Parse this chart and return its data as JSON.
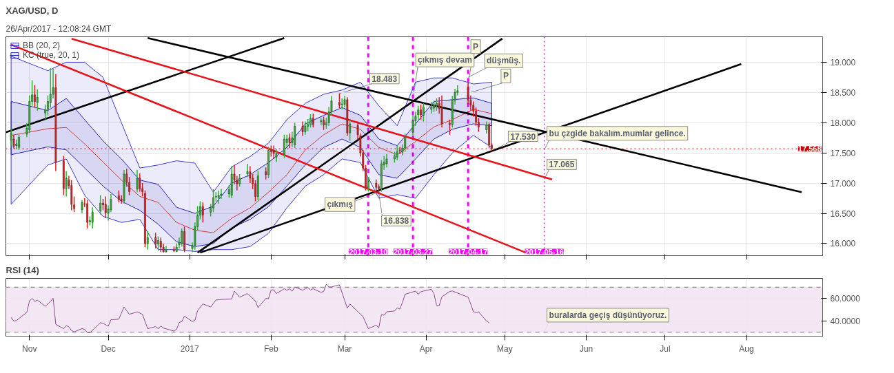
{
  "chart_data": [
    {
      "type": "candlestick",
      "title": "XAG/USD, D",
      "annotations": [
        "26/Apr/2017 - 12:08:24 GMT",
        {
          "text": "18.483",
          "x": "2017-02-27",
          "y": 18.483
        },
        {
          "text": "çıkmış devam",
          "x": "2017-03-27",
          "y": 18.4
        },
        {
          "text": "düşmüş.",
          "x": "2017-04-17",
          "y": 18.75
        },
        {
          "text": "P",
          "x": "2017-04-17",
          "y": 18.62
        },
        {
          "text": "P",
          "x": "2017-04-18",
          "y": 18.5
        },
        {
          "text": "17.530",
          "x": "2017-04-26",
          "y": 17.53
        },
        {
          "text": "bu çzgide bakalım.mumlar gelince.",
          "x": "2017-05-16",
          "y": 17.55
        },
        {
          "text": "17.065",
          "x": "2017-05-16",
          "y": 17.065
        },
        {
          "text": "çıkmış",
          "x": "2017-03-14",
          "y": 16.85
        },
        {
          "text": "16.838",
          "x": "2017-03-14",
          "y": 16.838
        }
      ],
      "colors": [
        "#2cb52c",
        "#e01b1b",
        "#2cb52c",
        "#2cb52c",
        "#2cb52c",
        "#2cb52c",
        "#2cb52c",
        "#e01b1b",
        "#2cb52c",
        "#2cb52c",
        "#2cb52c",
        "#2cb52c",
        "#2cb52c",
        "#e01b1b",
        "#e01b1b",
        "#2cb52c",
        "#e01b1b",
        "#e01b1b",
        "#e01b1b",
        "#2cb52c",
        "#e01b1b",
        "#e01b1b",
        "#2cb52c",
        "#2cb52c",
        "#2cb52c",
        "#e01b1b",
        "#e01b1b",
        "#2cb52c",
        "#2cb52c",
        "#e01b1b",
        "#e01b1b",
        "#2cb52c",
        "#e01b1b",
        "#e01b1b",
        "#2cb52c",
        "#e01b1b",
        "#e01b1b",
        "#e01b1b",
        "#2cb52c",
        "#e01b1b",
        "#2cb52c",
        "#e01b1b",
        "#e01b1b",
        "#2cb52c",
        "#e01b1b",
        "#2cb52c",
        "#2cb52c",
        "#2cb52c",
        "#e01b1b",
        "#2cb52c",
        "#2cb52c",
        "#2cb52c",
        "#2cb52c",
        "#e01b1b",
        "#2cb52c",
        "#2cb52c",
        "#2cb52c",
        "#2cb52c",
        "#2cb52c",
        "#2cb52c",
        "#2cb52c",
        "#e01b1b",
        "#e01b1b",
        "#2cb52c",
        "#2cb52c",
        "#e01b1b",
        "#e01b1b",
        "#e01b1b",
        "#2cb52c",
        "#e01b1b",
        "#2cb52c",
        "#e01b1b",
        "#e01b1b",
        "#2cb52c",
        "#2cb52c",
        "#2cb52c",
        "#e01b1b",
        "#2cb52c",
        "#2cb52c",
        "#e01b1b",
        "#2cb52c",
        "#2cb52c",
        "#2cb52c",
        "#e01b1b",
        "#2cb52c",
        "#e01b1b",
        "#2cb52c",
        "#2cb52c",
        "#2cb52c",
        "#e01b1b",
        "#2cb52c",
        "#2cb52c",
        "#e01b1b",
        "#2cb52c",
        "#e01b1b",
        "#e01b1b",
        "#e01b1b",
        "#e01b1b",
        "#2cb52c",
        "#e01b1b",
        "#e01b1b",
        "#2cb52c",
        "#2cb52c",
        "#2cb52c",
        "#2cb52c",
        "#2cb52c",
        "#e01b1b",
        "#2cb52c",
        "#2cb52c",
        "#2cb52c",
        "#2cb52c",
        "#2cb52c",
        "#e01b1b",
        "#2cb52c",
        "#2cb52c",
        "#2cb52c",
        "#2cb52c",
        "#e01b1b",
        "#e01b1b",
        "#e01b1b",
        "#2cb52c",
        "#2cb52c",
        "#2cb52c",
        "#e01b1b",
        "#e01b1b",
        "#e01b1b",
        "#e01b1b",
        "#e01b1b",
        "#2cb52c",
        "#e01b1b",
        "#e01b1b"
      ],
      "x": [
        "2016-10-25",
        "2016-10-26",
        "2016-10-27",
        "2016-10-28",
        "2016-10-31",
        "2016-11-01",
        "2016-11-02",
        "2016-11-03",
        "2016-11-04",
        "2016-11-07",
        "2016-11-08",
        "2016-11-09",
        "2016-11-10",
        "2016-11-11",
        "2016-11-14",
        "2016-11-15",
        "2016-11-16",
        "2016-11-17",
        "2016-11-18",
        "2016-11-21",
        "2016-11-22",
        "2016-11-23",
        "2016-11-24",
        "2016-11-25",
        "2016-11-28",
        "2016-11-29",
        "2016-11-30",
        "2016-12-01",
        "2016-12-02",
        "2016-12-05",
        "2016-12-06",
        "2016-12-07",
        "2016-12-08",
        "2016-12-09",
        "2016-12-12",
        "2016-12-13",
        "2016-12-14",
        "2016-12-15",
        "2016-12-16",
        "2016-12-19",
        "2016-12-20",
        "2016-12-21",
        "2016-12-22",
        "2016-12-23",
        "2016-12-26",
        "2016-12-27",
        "2016-12-28",
        "2016-12-29",
        "2016-12-30",
        "2017-01-02",
        "2017-01-03",
        "2017-01-04",
        "2017-01-05",
        "2017-01-06",
        "2017-01-09",
        "2017-01-10",
        "2017-01-11",
        "2017-01-12",
        "2017-01-13",
        "2017-01-16",
        "2017-01-17",
        "2017-01-18",
        "2017-01-19",
        "2017-01-20",
        "2017-01-23",
        "2017-01-24",
        "2017-01-25",
        "2017-01-26",
        "2017-01-27",
        "2017-01-30",
        "2017-01-31",
        "2017-02-01",
        "2017-02-02",
        "2017-02-03",
        "2017-02-06",
        "2017-02-07",
        "2017-02-08",
        "2017-02-09",
        "2017-02-10",
        "2017-02-13",
        "2017-02-14",
        "2017-02-15",
        "2017-02-16",
        "2017-02-17",
        "2017-02-20",
        "2017-02-21",
        "2017-02-22",
        "2017-02-23",
        "2017-02-24",
        "2017-02-27",
        "2017-02-28",
        "2017-03-01",
        "2017-03-02",
        "2017-03-03",
        "2017-03-06",
        "2017-03-07",
        "2017-03-08",
        "2017-03-09",
        "2017-03-10",
        "2017-03-13",
        "2017-03-14",
        "2017-03-15",
        "2017-03-16",
        "2017-03-17",
        "2017-03-20",
        "2017-03-21",
        "2017-03-22",
        "2017-03-23",
        "2017-03-24",
        "2017-03-27",
        "2017-03-28",
        "2017-03-29",
        "2017-03-30",
        "2017-03-31",
        "2017-04-03",
        "2017-04-04",
        "2017-04-05",
        "2017-04-06",
        "2017-04-07",
        "2017-04-10",
        "2017-04-11",
        "2017-04-12",
        "2017-04-13",
        "2017-04-17",
        "2017-04-18",
        "2017-04-19",
        "2017-04-20",
        "2017-04-21",
        "2017-04-24",
        "2017-04-25",
        "2017-04-26"
      ],
      "ohlc": [
        [
          17.71,
          17.9,
          17.62,
          17.83
        ],
        [
          17.73,
          17.8,
          17.57,
          17.61
        ],
        [
          17.62,
          17.72,
          17.56,
          17.65
        ],
        [
          17.59,
          17.82,
          17.55,
          17.76
        ],
        [
          17.81,
          17.99,
          17.76,
          17.91
        ],
        [
          17.88,
          18.45,
          17.83,
          18.35
        ],
        [
          18.35,
          18.7,
          18.28,
          18.46
        ],
        [
          18.46,
          18.62,
          18.25,
          18.35
        ],
        [
          18.33,
          18.55,
          18.2,
          18.42
        ],
        [
          18.16,
          18.3,
          18.05,
          18.21
        ],
        [
          18.22,
          18.45,
          18.12,
          18.35
        ],
        [
          18.33,
          18.9,
          18.25,
          18.47
        ],
        [
          18.47,
          18.9,
          18.4,
          18.58
        ],
        [
          18.58,
          18.8,
          17.2,
          17.34
        ],
        [
          17.37,
          17.45,
          16.8,
          16.91
        ],
        [
          16.91,
          17.2,
          16.78,
          17.08
        ],
        [
          17.05,
          17.12,
          16.9,
          16.96
        ],
        [
          16.96,
          17.05,
          16.55,
          16.65
        ],
        [
          16.64,
          16.78,
          16.52,
          16.58
        ],
        [
          16.56,
          16.72,
          16.5,
          16.68
        ],
        [
          16.66,
          16.75,
          16.6,
          16.65
        ],
        [
          16.66,
          16.72,
          16.25,
          16.35
        ],
        [
          16.36,
          16.45,
          16.3,
          16.38
        ],
        [
          16.35,
          16.6,
          16.25,
          16.52
        ],
        [
          16.54,
          16.8,
          16.48,
          16.67
        ],
        [
          16.67,
          16.74,
          16.55,
          16.64
        ],
        [
          16.65,
          16.78,
          16.42,
          16.51
        ],
        [
          16.5,
          16.63,
          16.38,
          16.57
        ],
        [
          16.56,
          16.82,
          16.52,
          16.73
        ],
        [
          16.79,
          16.88,
          16.68,
          16.73
        ],
        [
          16.74,
          16.8,
          16.66,
          16.71
        ],
        [
          16.71,
          17.22,
          16.66,
          17.15
        ],
        [
          17.15,
          17.24,
          16.94,
          17.01
        ],
        [
          17.01,
          17.1,
          16.8,
          16.86
        ],
        [
          16.9,
          17.22,
          16.85,
          17.08
        ],
        [
          17.08,
          17.16,
          16.86,
          16.91
        ],
        [
          16.91,
          17.0,
          16.78,
          16.86
        ],
        [
          16.83,
          16.88,
          15.94,
          16.0
        ],
        [
          16.0,
          16.2,
          15.9,
          16.1
        ],
        [
          16.1,
          16.18,
          15.92,
          15.99
        ],
        [
          15.99,
          16.12,
          15.88,
          16.05
        ],
        [
          16.04,
          16.1,
          15.86,
          15.94
        ],
        [
          15.94,
          16.0,
          15.86,
          15.86
        ],
        [
          15.86,
          15.96,
          15.86,
          15.9
        ],
        [
          15.9,
          15.95,
          15.86,
          15.88
        ],
        [
          15.87,
          16.0,
          15.86,
          15.94
        ],
        [
          15.98,
          16.1,
          15.92,
          16.02
        ],
        [
          16.01,
          16.25,
          15.95,
          16.2
        ],
        [
          16.2,
          16.28,
          15.86,
          15.9
        ],
        [
          15.92,
          16.02,
          15.86,
          15.97
        ],
        [
          15.97,
          16.35,
          15.9,
          16.28
        ],
        [
          16.28,
          16.62,
          16.22,
          16.47
        ],
        [
          16.47,
          16.7,
          16.4,
          16.61
        ],
        [
          16.61,
          16.68,
          16.35,
          16.47
        ],
        [
          16.52,
          16.66,
          16.45,
          16.6
        ],
        [
          16.59,
          16.9,
          16.52,
          16.76
        ],
        [
          16.77,
          16.85,
          16.7,
          16.78
        ],
        [
          16.76,
          16.88,
          16.66,
          16.8
        ],
        [
          16.79,
          16.9,
          16.74,
          16.82
        ],
        [
          16.82,
          16.96,
          16.76,
          16.89
        ],
        [
          16.8,
          17.28,
          16.75,
          17.15
        ],
        [
          17.15,
          17.3,
          16.98,
          17.05
        ],
        [
          17.05,
          17.12,
          16.88,
          16.99
        ],
        [
          16.99,
          17.15,
          16.94,
          17.08
        ],
        [
          17.15,
          17.32,
          17.1,
          17.19
        ],
        [
          17.19,
          17.28,
          17.0,
          17.08
        ],
        [
          17.08,
          17.15,
          16.9,
          16.99
        ],
        [
          16.99,
          17.05,
          16.7,
          16.78
        ],
        [
          16.78,
          17.2,
          16.72,
          17.12
        ],
        [
          17.19,
          17.26,
          17.06,
          17.14
        ],
        [
          17.14,
          17.6,
          17.08,
          17.54
        ],
        [
          17.54,
          17.62,
          17.44,
          17.52
        ],
        [
          17.54,
          17.62,
          17.4,
          17.49
        ],
        [
          17.43,
          17.56,
          17.35,
          17.49
        ],
        [
          17.48,
          17.8,
          17.42,
          17.73
        ],
        [
          17.67,
          17.8,
          17.6,
          17.73
        ],
        [
          17.75,
          17.82,
          17.58,
          17.67
        ],
        [
          17.67,
          17.85,
          17.6,
          17.75
        ],
        [
          17.63,
          18.0,
          17.58,
          17.94
        ],
        [
          17.94,
          18.02,
          17.78,
          17.85
        ],
        [
          17.85,
          18.02,
          17.8,
          17.94
        ],
        [
          17.94,
          18.06,
          17.86,
          17.97
        ],
        [
          17.97,
          18.14,
          17.92,
          18.07
        ],
        [
          18.07,
          18.15,
          17.92,
          17.97
        ],
        [
          18.02,
          18.08,
          17.96,
          18.03
        ],
        [
          18.04,
          18.1,
          17.88,
          17.96
        ],
        [
          17.96,
          18.08,
          17.9,
          18.0
        ],
        [
          18.0,
          18.26,
          17.95,
          18.18
        ],
        [
          18.18,
          18.44,
          18.12,
          18.36
        ],
        [
          18.34,
          18.483,
          18.24,
          18.29
        ],
        [
          18.3,
          18.4,
          18.22,
          18.31
        ],
        [
          18.3,
          18.44,
          18.25,
          18.38
        ],
        [
          18.38,
          18.42,
          17.78,
          17.83
        ],
        [
          17.83,
          18.05,
          17.7,
          17.98
        ],
        [
          17.95,
          18.02,
          17.72,
          17.8
        ],
        [
          17.78,
          17.82,
          17.44,
          17.5
        ],
        [
          17.5,
          17.55,
          17.2,
          17.25
        ],
        [
          17.25,
          17.3,
          16.88,
          16.93
        ],
        [
          16.93,
          17.1,
          16.86,
          17.03
        ],
        [
          17.0,
          17.06,
          16.88,
          16.93
        ],
        [
          16.94,
          16.98,
          16.838,
          16.91
        ],
        [
          16.91,
          17.38,
          16.86,
          17.32
        ],
        [
          17.3,
          17.45,
          17.22,
          17.35
        ],
        [
          17.32,
          17.48,
          17.26,
          17.4
        ],
        [
          17.4,
          17.52,
          17.34,
          17.45
        ],
        [
          17.43,
          17.62,
          17.38,
          17.52
        ],
        [
          17.55,
          17.6,
          17.48,
          17.54
        ],
        [
          17.51,
          17.64,
          17.46,
          17.58
        ],
        [
          17.58,
          17.82,
          17.52,
          17.76
        ],
        [
          17.84,
          18.12,
          17.78,
          18.03
        ],
        [
          18.03,
          18.18,
          17.95,
          18.11
        ],
        [
          18.13,
          18.28,
          18.05,
          18.21
        ],
        [
          18.21,
          18.3,
          18.05,
          18.13
        ],
        [
          18.12,
          18.32,
          18.02,
          18.26
        ],
        [
          18.22,
          18.34,
          18.15,
          18.26
        ],
        [
          18.24,
          18.36,
          18.18,
          18.29
        ],
        [
          18.28,
          18.4,
          18.2,
          18.32
        ],
        [
          18.32,
          18.42,
          18.15,
          18.23
        ],
        [
          18.23,
          18.45,
          17.92,
          17.98
        ],
        [
          17.99,
          18.05,
          17.8,
          17.97
        ],
        [
          17.97,
          18.44,
          17.92,
          18.37
        ],
        [
          18.37,
          18.56,
          18.3,
          18.5
        ],
        [
          18.5,
          18.62,
          18.45,
          18.53
        ],
        [
          18.58,
          18.66,
          18.3,
          18.37
        ],
        [
          18.37,
          18.45,
          18.2,
          18.29
        ],
        [
          18.29,
          18.35,
          18.1,
          18.19
        ],
        [
          18.19,
          18.25,
          17.95,
          18.01
        ],
        [
          18.01,
          18.08,
          17.85,
          17.93
        ],
        [
          17.88,
          18.02,
          17.82,
          17.96
        ],
        [
          17.97,
          18.0,
          17.58,
          17.63
        ],
        [
          17.63,
          17.66,
          17.53,
          17.57
        ]
      ],
      "series": [
        {
          "name": "BB (20, 2)",
          "type": "line",
          "color": "#3a3ad6",
          "x": [
            "2016-10-25",
            "2016-11-08",
            "2016-11-15",
            "2016-11-22",
            "2016-11-29",
            "2016-12-06",
            "2016-12-13",
            "2016-12-20",
            "2016-12-27",
            "2017-01-03",
            "2017-01-10",
            "2017-01-17",
            "2017-01-24",
            "2017-01-31",
            "2017-02-07",
            "2017-02-14",
            "2017-02-21",
            "2017-02-28",
            "2017-03-07",
            "2017-03-14",
            "2017-03-21",
            "2017-03-28",
            "2017-04-04",
            "2017-04-11",
            "2017-04-19",
            "2017-04-26"
          ],
          "values": [
            null,
            null,
            null,
            null,
            null,
            null,
            null,
            null,
            null,
            null,
            null,
            null,
            null,
            null,
            null,
            null,
            null,
            null,
            null,
            null,
            null,
            null,
            null,
            null,
            null,
            null
          ],
          "lower": [
            16.65,
            17.3,
            17.4,
            16.8,
            16.45,
            16.35,
            16.4,
            15.9,
            15.9,
            15.87,
            15.9,
            15.9,
            15.95,
            16.17,
            16.59,
            16.95,
            17.14,
            17.4,
            17.34,
            16.75,
            16.81,
            16.75,
            17.14,
            17.5,
            17.79,
            17.59
          ],
          "upper": [
            19.1,
            18.86,
            19.0,
            19.0,
            18.75,
            18.0,
            17.25,
            17.3,
            17.37,
            17.33,
            16.85,
            17.27,
            17.44,
            17.66,
            18.05,
            18.32,
            18.47,
            18.54,
            18.67,
            18.28,
            17.95,
            18.67,
            18.74,
            18.74,
            18.64,
            18.67
          ]
        },
        {
          "name": "KC (true, 20, 1)",
          "type": "line",
          "color": "#2424b8",
          "x": [
            "2016-10-25",
            "2016-11-08",
            "2016-11-15",
            "2016-11-22",
            "2016-11-29",
            "2016-12-06",
            "2016-12-13",
            "2016-12-20",
            "2016-12-27",
            "2017-01-03",
            "2017-01-10",
            "2017-01-17",
            "2017-01-24",
            "2017-01-31",
            "2017-02-07",
            "2017-02-14",
            "2017-02-21",
            "2017-02-28",
            "2017-03-07",
            "2017-03-14",
            "2017-03-21",
            "2017-03-28",
            "2017-04-04",
            "2017-04-11",
            "2017-04-19",
            "2017-04-26"
          ],
          "values": [
            null,
            null,
            null,
            null,
            null,
            null,
            null,
            null,
            null,
            null,
            null,
            null,
            null,
            null,
            null,
            null,
            null,
            null,
            null,
            null,
            null,
            null,
            null,
            null,
            null,
            null
          ],
          "lower": [
            17.47,
            17.6,
            17.55,
            17.25,
            16.95,
            16.7,
            16.55,
            16.32,
            16.03,
            15.95,
            16.0,
            16.26,
            16.4,
            16.61,
            16.95,
            17.3,
            17.59,
            17.73,
            17.59,
            17.14,
            17.08,
            17.4,
            17.73,
            17.89,
            17.98,
            17.95
          ],
          "upper": [
            18.35,
            18.2,
            18.4,
            18.05,
            17.7,
            17.4,
            17.05,
            16.98,
            16.6,
            16.5,
            16.62,
            17.0,
            17.14,
            17.34,
            17.59,
            17.98,
            18.12,
            18.25,
            18.12,
            17.73,
            17.62,
            17.98,
            18.35,
            18.38,
            18.41,
            18.32
          ]
        },
        {
          "type": "line",
          "color": "#d23a3a",
          "x": [
            "2016-10-25",
            "2016-11-08",
            "2016-11-15",
            "2016-11-22",
            "2016-11-29",
            "2016-12-06",
            "2016-12-13",
            "2016-12-20",
            "2016-12-27",
            "2017-01-03",
            "2017-01-10",
            "2017-01-17",
            "2017-01-24",
            "2017-01-31",
            "2017-02-07",
            "2017-02-14",
            "2017-02-21",
            "2017-02-28",
            "2017-03-07",
            "2017-03-14",
            "2017-03-21",
            "2017-03-28",
            "2017-04-04",
            "2017-04-11",
            "2017-04-19",
            "2017-04-26"
          ],
          "values": [
            17.79,
            17.9,
            17.92,
            17.65,
            17.35,
            17.05,
            16.78,
            16.68,
            16.35,
            16.22,
            16.18,
            16.42,
            16.59,
            16.85,
            17.14,
            17.55,
            17.8,
            17.98,
            17.89,
            17.59,
            17.47,
            17.69,
            17.93,
            18.05,
            18.22,
            18.15
          ]
        },
        {
          "type": "line",
          "color": "#000000",
          "x": [
            "2016-10-23",
            "2017-02-06"
          ],
          "values": [
            17.84,
            19.4
          ]
        },
        {
          "type": "line",
          "color": "#000000",
          "x": [
            "2016-12-16",
            "2017-08-22"
          ],
          "values": [
            19.4,
            16.85
          ]
        },
        {
          "type": "line",
          "color": "#000000",
          "x": [
            "2017-01-04",
            "2017-04-30"
          ],
          "values": [
            15.85,
            19.39
          ]
        },
        {
          "type": "line",
          "color": "#000000",
          "x": [
            "2017-01-05",
            "2017-07-30"
          ],
          "values": [
            15.85,
            18.97
          ]
        },
        {
          "type": "line",
          "color": "#e8141c",
          "x": [
            "2016-10-25",
            "2017-05-09"
          ],
          "values": [
            19.29,
            15.85
          ]
        },
        {
          "type": "line",
          "color": "#e8141c",
          "x": [
            "2016-11-17",
            "2017-05-19"
          ],
          "values": [
            19.39,
            17.06
          ]
        }
      ],
      "xlim": [
        "2016-10-23",
        "2017-08-30"
      ],
      "xticks": [
        {
          "value": "2016-11-01",
          "label": null
        },
        {
          "value": "2016-12-01",
          "label": null
        },
        {
          "value": "2017-01-01",
          "label": null
        },
        {
          "value": "2017-02-01",
          "label": null
        },
        {
          "value": "2017-03-01",
          "label": null
        },
        {
          "value": "2017-04-01",
          "label": null
        },
        {
          "value": "2017-05-01",
          "label": null
        },
        {
          "value": "2017-06-01",
          "label": null
        },
        {
          "value": "2017-07-01",
          "label": null
        },
        {
          "value": "2017-08-01",
          "label": null
        }
      ],
      "ylim": [
        15.8,
        19.42
      ],
      "yticks": [
        {
          "value": 16,
          "label": "16.000"
        },
        {
          "value": 16.5,
          "label": "16.500"
        },
        {
          "value": 17,
          "label": "17.000"
        },
        {
          "value": 17.5,
          "label": "17.500"
        },
        {
          "value": 18,
          "label": "18.000"
        },
        {
          "value": 18.5,
          "label": "18.500"
        },
        {
          "value": 19,
          "label": "19.000"
        }
      ],
      "tick_labels": "y",
      "grid": true,
      "legend": "top left",
      "ref_lines": [
        {
          "axis": "y",
          "value": 17.568,
          "label": "17.568",
          "color": "#cc0000",
          "line_style": "dotted"
        },
        {
          "axis": "x",
          "value": "2017-03-10",
          "label": "2017-03-10",
          "color": "#ff00ff",
          "line_style": "dashed"
        },
        {
          "axis": "x",
          "value": "2017-03-27",
          "label": "2017-03-27",
          "color": "#ff00ff",
          "line_style": "dashed"
        },
        {
          "axis": "x",
          "value": "2017-04-17",
          "label": "2017-04-17",
          "color": "#ff00ff",
          "line_style": "dashed"
        },
        {
          "axis": "x",
          "value": "2017-05-16",
          "label": "2017-05-16",
          "color": "#ff00ff",
          "line_style": "dotted"
        }
      ]
    },
    {
      "type": "line",
      "title": "RSI (14)",
      "series": [
        {
          "color": "#8e4a8e",
          "x": [
            "2016-10-25",
            "2016-10-26",
            "2016-10-27",
            "2016-10-31",
            "2016-11-01",
            "2016-11-02",
            "2016-11-03",
            "2016-11-04",
            "2016-11-07",
            "2016-11-09",
            "2016-11-10",
            "2016-11-11",
            "2016-11-14",
            "2016-11-15",
            "2016-11-16",
            "2016-11-17",
            "2016-11-18",
            "2016-11-21",
            "2016-11-22",
            "2016-11-23",
            "2016-11-24",
            "2016-11-28",
            "2016-11-29",
            "2016-12-01",
            "2016-12-02",
            "2016-12-05",
            "2016-12-07",
            "2016-12-09",
            "2016-12-12",
            "2016-12-14",
            "2016-12-16",
            "2016-12-19",
            "2016-12-20",
            "2016-12-21",
            "2016-12-22",
            "2016-12-26",
            "2016-12-27",
            "2016-12-28",
            "2016-12-29",
            "2016-12-30",
            "2017-01-02",
            "2017-01-03",
            "2017-01-04",
            "2017-01-06",
            "2017-01-09",
            "2017-01-11",
            "2017-01-13",
            "2017-01-17",
            "2017-01-18",
            "2017-01-20",
            "2017-01-23",
            "2017-01-26",
            "2017-01-27",
            "2017-01-30",
            "2017-01-31",
            "2017-02-01",
            "2017-02-02",
            "2017-02-03",
            "2017-02-06",
            "2017-02-07",
            "2017-02-08",
            "2017-02-09",
            "2017-02-10",
            "2017-02-13",
            "2017-02-14",
            "2017-02-15",
            "2017-02-16",
            "2017-02-17",
            "2017-02-20",
            "2017-02-21",
            "2017-02-22",
            "2017-02-23",
            "2017-02-24",
            "2017-02-27",
            "2017-03-02",
            "2017-03-03",
            "2017-03-08",
            "2017-03-10",
            "2017-03-13",
            "2017-03-14",
            "2017-03-15",
            "2017-03-16",
            "2017-03-17",
            "2017-03-20",
            "2017-03-21",
            "2017-03-22",
            "2017-03-23",
            "2017-03-24",
            "2017-03-28",
            "2017-03-29",
            "2017-03-30",
            "2017-03-31",
            "2017-04-03",
            "2017-04-04",
            "2017-04-05",
            "2017-04-06",
            "2017-04-07",
            "2017-04-10",
            "2017-04-11",
            "2017-04-17",
            "2017-04-18",
            "2017-04-19",
            "2017-04-20",
            "2017-04-21",
            "2017-04-24",
            "2017-04-25"
          ],
          "values": [
            43.2,
            40.0,
            40.3,
            47.8,
            57.8,
            60.0,
            57.3,
            58.5,
            53.0,
            57.3,
            60.2,
            37.0,
            33.2,
            35.9,
            34.8,
            31.6,
            30.3,
            33.2,
            32.5,
            29.7,
            29.5,
            38.4,
            38.0,
            35.3,
            41.1,
            41.6,
            52.4,
            45.9,
            48.1,
            45.9,
            33.2,
            35.0,
            33.2,
            35.5,
            33.7,
            31.1,
            32.6,
            38.6,
            39.5,
            44.3,
            39.5,
            40.6,
            49.2,
            55.1,
            52.4,
            58.6,
            59.1,
            59.5,
            66.5,
            61.1,
            64.3,
            57.8,
            51.9,
            60.0,
            59.8,
            67.6,
            67.6,
            64.3,
            68.6,
            67.3,
            68.6,
            66.4,
            70.2,
            67.3,
            68.6,
            69.7,
            67.6,
            68.6,
            65.4,
            66.2,
            72.6,
            70.2,
            70.2,
            72.1,
            51.4,
            55.1,
            43.8,
            33.2,
            36.2,
            34.1,
            45.6,
            45.1,
            48.1,
            48.9,
            51.6,
            50.6,
            56.4,
            63.7,
            66.5,
            63.7,
            65.9,
            66.5,
            68.1,
            64.3,
            54.0,
            53.5,
            61.4,
            66.2,
            66.6,
            61.1,
            55.1,
            48.3,
            47.5,
            48.0,
            40.0,
            38.4
          ]
        }
      ],
      "annotations": [
        {
          "text": "buralarda geçiş düşünüyoruz.",
          "x": "2017-05-16",
          "y": 30.5
        }
      ],
      "xlim": [
        "2016-10-23",
        "2017-08-30"
      ],
      "xticks": [
        {
          "value": "2016-11-01",
          "label": "Nov"
        },
        {
          "value": "2016-12-01",
          "label": "Dec"
        },
        {
          "value": "2017-01-01",
          "label": "2017"
        },
        {
          "value": "2017-02-01",
          "label": "Feb"
        },
        {
          "value": "2017-03-01",
          "label": "Mar"
        },
        {
          "value": "2017-04-01",
          "label": "Apr"
        },
        {
          "value": "2017-05-01",
          "label": "May"
        },
        {
          "value": "2017-06-01",
          "label": "Jun"
        },
        {
          "value": "2017-07-01",
          "label": "Jul"
        },
        {
          "value": "2017-08-01",
          "label": "Aug"
        }
      ],
      "ylim": [
        26.5,
        77.8
      ],
      "yticks": [
        {
          "value": 40,
          "label": "40.0000"
        },
        {
          "value": 60,
          "label": "60.0000"
        }
      ],
      "grid": true,
      "bands": [
        {
          "axis": "y",
          "from": 30,
          "to": 70,
          "color": "#f2e4f2"
        }
      ],
      "ref_lines": [
        {
          "axis": "y",
          "value": 70,
          "color": "#777777",
          "line_style": "dashed"
        },
        {
          "axis": "y",
          "value": 30,
          "color": "#777777",
          "line_style": "dashed"
        }
      ]
    }
  ]
}
